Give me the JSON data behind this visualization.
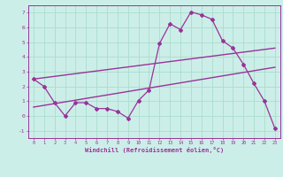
{
  "bg_color": "#cceee8",
  "grid_color": "#aaddcc",
  "line_color": "#993399",
  "xlabel": "Windchill (Refroidissement éolien,°C)",
  "xlabel_color": "#993399",
  "tick_color": "#993399",
  "xlim": [
    -0.5,
    23.5
  ],
  "ylim": [
    -1.5,
    7.5
  ],
  "yticks": [
    -1,
    0,
    1,
    2,
    3,
    4,
    5,
    6,
    7
  ],
  "xticks": [
    0,
    1,
    2,
    3,
    4,
    5,
    6,
    7,
    8,
    9,
    10,
    11,
    12,
    13,
    14,
    15,
    16,
    17,
    18,
    19,
    20,
    21,
    22,
    23
  ],
  "line1_x": [
    0,
    1,
    2,
    3,
    4,
    5,
    6,
    7,
    8,
    9,
    10,
    11,
    12,
    13,
    14,
    15,
    16,
    17,
    18,
    19,
    20,
    21,
    22,
    23
  ],
  "line1_y": [
    2.5,
    2.0,
    0.9,
    0.0,
    0.9,
    0.9,
    0.5,
    0.5,
    0.3,
    -0.15,
    1.05,
    1.75,
    4.9,
    6.25,
    5.85,
    7.05,
    6.85,
    6.55,
    5.1,
    4.6,
    3.5,
    2.2,
    1.0,
    -0.85
  ],
  "line2_x": [
    0,
    23
  ],
  "line2_y": [
    0.6,
    3.3
  ],
  "line3_x": [
    0,
    23
  ],
  "line3_y": [
    2.5,
    4.6
  ],
  "figwidth": 3.2,
  "figheight": 2.0,
  "dpi": 100
}
